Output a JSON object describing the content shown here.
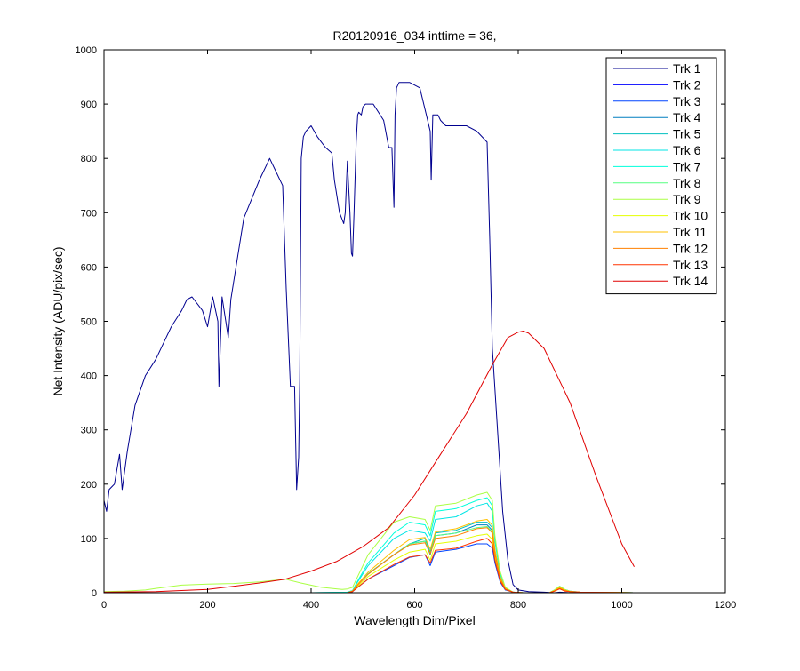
{
  "chart_data": {
    "type": "line",
    "title": "R20120916_034 inttime = 36,",
    "xlabel": "Wavelength Dim/Pixel",
    "ylabel": "Net Intensity (ADU/pix/sec)",
    "xlim": [
      0,
      1200
    ],
    "ylim": [
      0,
      1000
    ],
    "xticks": [
      0,
      200,
      400,
      600,
      800,
      1000,
      1200
    ],
    "yticks": [
      0,
      100,
      200,
      300,
      400,
      500,
      600,
      700,
      800,
      900,
      1000
    ],
    "legend_position": "top-right",
    "series": [
      {
        "name": "Trk 1",
        "color": "#00008f",
        "x": [
          0,
          5,
          10,
          20,
          30,
          35,
          45,
          60,
          80,
          100,
          120,
          130,
          140,
          150,
          160,
          170,
          190,
          200,
          210,
          220,
          222,
          228,
          240,
          245,
          255,
          270,
          300,
          320,
          330,
          345,
          352,
          360,
          368,
          372,
          376,
          378,
          381,
          385,
          390,
          400,
          412,
          420,
          428,
          440,
          445,
          455,
          463,
          466,
          470,
          475,
          478,
          480,
          483,
          487,
          490,
          492,
          497,
          500,
          505,
          520,
          540,
          550,
          556,
          560,
          562,
          565,
          570,
          590,
          610,
          620,
          630,
          632,
          635,
          640,
          645,
          650,
          660,
          700,
          720,
          740,
          745,
          750,
          760,
          770,
          780,
          790,
          800,
          820,
          850,
          870,
          880,
          900,
          960,
          1000,
          1024
        ],
        "y": [
          170,
          150,
          190,
          200,
          255,
          190,
          260,
          345,
          400,
          430,
          470,
          490,
          505,
          520,
          540,
          545,
          520,
          490,
          545,
          500,
          380,
          545,
          470,
          540,
          600,
          690,
          760,
          800,
          780,
          750,
          560,
          380,
          380,
          190,
          250,
          390,
          800,
          840,
          850,
          860,
          840,
          830,
          820,
          810,
          760,
          700,
          680,
          700,
          795,
          700,
          625,
          620,
          700,
          830,
          880,
          885,
          880,
          895,
          900,
          900,
          870,
          820,
          820,
          710,
          880,
          930,
          940,
          940,
          930,
          890,
          850,
          760,
          880,
          880,
          880,
          870,
          860,
          860,
          850,
          830,
          650,
          450,
          300,
          150,
          60,
          15,
          5,
          2,
          1,
          0,
          1,
          0,
          0,
          0,
          0
        ]
      },
      {
        "name": "Trk 2",
        "color": "#0000ff",
        "x": [
          0,
          480,
          500,
          600,
          620,
          630,
          640,
          700,
          740,
          750,
          760,
          770,
          780,
          800,
          850,
          1024
        ],
        "y": [
          0,
          0,
          0,
          0,
          0,
          0,
          0,
          0,
          0,
          0,
          0,
          0,
          0,
          0,
          0,
          0
        ]
      },
      {
        "name": "Trk 3",
        "color": "#0044ff",
        "x": [
          0,
          400,
          470,
          480,
          490,
          510,
          560,
          590,
          620,
          630,
          640,
          680,
          720,
          740,
          750,
          755,
          765,
          775,
          790,
          810,
          860,
          870,
          880,
          890,
          900,
          920,
          1024
        ],
        "y": [
          0,
          0,
          0,
          2,
          10,
          25,
          50,
          65,
          70,
          50,
          75,
          80,
          90,
          90,
          82,
          55,
          20,
          5,
          1,
          0,
          0,
          3,
          8,
          4,
          2,
          1,
          0
        ]
      },
      {
        "name": "Trk 4",
        "color": "#007fbf",
        "x": [
          0,
          400,
          470,
          480,
          490,
          510,
          560,
          590,
          620,
          630,
          640,
          680,
          720,
          740,
          750,
          755,
          765,
          775,
          790,
          810,
          860,
          870,
          880,
          890,
          900,
          920,
          1024
        ],
        "y": [
          0,
          0,
          0,
          3,
          15,
          35,
          70,
          90,
          95,
          70,
          105,
          110,
          125,
          125,
          115,
          75,
          28,
          7,
          1,
          0,
          0,
          4,
          10,
          5,
          2,
          1,
          0
        ]
      },
      {
        "name": "Trk 5",
        "color": "#00bfbf",
        "x": [
          0,
          400,
          470,
          480,
          490,
          510,
          560,
          590,
          620,
          630,
          640,
          680,
          720,
          740,
          750,
          755,
          765,
          775,
          790,
          810,
          860,
          870,
          880,
          890,
          900,
          920,
          1024
        ],
        "y": [
          0,
          0,
          0,
          3,
          15,
          35,
          70,
          90,
          100,
          75,
          110,
          115,
          130,
          130,
          120,
          78,
          30,
          8,
          1,
          0,
          0,
          4,
          10,
          5,
          2,
          1,
          0
        ]
      },
      {
        "name": "Trk 6",
        "color": "#00e5e5",
        "x": [
          0,
          400,
          470,
          480,
          490,
          510,
          560,
          590,
          620,
          630,
          640,
          680,
          720,
          740,
          750,
          755,
          765,
          775,
          790,
          810,
          860,
          870,
          880,
          890,
          900,
          920,
          1024
        ],
        "y": [
          0,
          0,
          1,
          4,
          20,
          50,
          100,
          115,
          110,
          95,
          135,
          140,
          160,
          165,
          150,
          95,
          35,
          9,
          1,
          0,
          0,
          5,
          12,
          6,
          3,
          1,
          0
        ]
      },
      {
        "name": "Trk 7",
        "color": "#00ffdc",
        "x": [
          0,
          400,
          470,
          480,
          490,
          510,
          560,
          590,
          620,
          630,
          640,
          680,
          720,
          740,
          750,
          755,
          765,
          775,
          790,
          810,
          860,
          870,
          880,
          890,
          900,
          920,
          1024
        ],
        "y": [
          0,
          0,
          1,
          4,
          22,
          55,
          110,
          130,
          125,
          105,
          150,
          155,
          170,
          175,
          160,
          100,
          38,
          10,
          1,
          0,
          0,
          5,
          12,
          6,
          3,
          1,
          0
        ]
      },
      {
        "name": "Trk 8",
        "color": "#55ff80",
        "x": [
          0,
          400,
          470,
          480,
          490,
          510,
          560,
          590,
          620,
          630,
          640,
          680,
          720,
          740,
          750,
          755,
          765,
          775,
          790,
          810,
          860,
          870,
          880,
          890,
          900,
          920,
          1024
        ],
        "y": [
          0,
          0,
          0,
          3,
          15,
          35,
          70,
          90,
          95,
          72,
          105,
          110,
          120,
          122,
          112,
          72,
          27,
          7,
          1,
          0,
          0,
          4,
          9,
          5,
          2,
          1,
          0
        ]
      },
      {
        "name": "Trk 9",
        "color": "#aaff44",
        "x": [
          0,
          40,
          80,
          100,
          150,
          200,
          250,
          300,
          350,
          380,
          420,
          460,
          470,
          480,
          490,
          510,
          560,
          590,
          620,
          630,
          640,
          680,
          720,
          740,
          750,
          755,
          765,
          775,
          790,
          810,
          860,
          870,
          880,
          890,
          900,
          920,
          1024
        ],
        "y": [
          2,
          3,
          5,
          8,
          14,
          16,
          17,
          20,
          25,
          18,
          10,
          6,
          7,
          10,
          30,
          70,
          130,
          140,
          135,
          115,
          160,
          165,
          180,
          185,
          170,
          105,
          40,
          10,
          1,
          0,
          0,
          5,
          12,
          6,
          3,
          1,
          0
        ]
      },
      {
        "name": "Trk 10",
        "color": "#e5ff00",
        "x": [
          0,
          400,
          470,
          480,
          490,
          510,
          560,
          590,
          620,
          630,
          640,
          680,
          720,
          740,
          750,
          755,
          765,
          775,
          790,
          810,
          860,
          870,
          880,
          890,
          900,
          920,
          1024
        ],
        "y": [
          0,
          0,
          0,
          3,
          12,
          30,
          60,
          75,
          80,
          60,
          90,
          95,
          105,
          108,
          98,
          64,
          24,
          6,
          1,
          0,
          0,
          3,
          8,
          4,
          2,
          1,
          0
        ]
      },
      {
        "name": "Trk 11",
        "color": "#ffc000",
        "x": [
          0,
          400,
          470,
          480,
          490,
          510,
          560,
          590,
          620,
          630,
          640,
          680,
          720,
          740,
          750,
          755,
          765,
          775,
          790,
          810,
          860,
          870,
          880,
          890,
          900,
          920,
          1024
        ],
        "y": [
          0,
          0,
          0,
          3,
          16,
          38,
          78,
          98,
          102,
          80,
          112,
          118,
          132,
          135,
          124,
          80,
          30,
          8,
          1,
          0,
          0,
          4,
          10,
          5,
          2,
          1,
          0
        ]
      },
      {
        "name": "Trk 12",
        "color": "#ff8000",
        "x": [
          0,
          400,
          470,
          480,
          490,
          510,
          560,
          590,
          620,
          630,
          640,
          680,
          720,
          740,
          750,
          755,
          765,
          775,
          790,
          810,
          860,
          870,
          880,
          890,
          900,
          920,
          1024
        ],
        "y": [
          0,
          0,
          0,
          3,
          14,
          34,
          70,
          88,
          92,
          72,
          100,
          105,
          118,
          120,
          110,
          72,
          27,
          7,
          1,
          0,
          0,
          3,
          8,
          4,
          2,
          1,
          0
        ]
      },
      {
        "name": "Trk 13",
        "color": "#ff3300",
        "x": [
          0,
          400,
          470,
          480,
          490,
          510,
          560,
          590,
          620,
          630,
          640,
          680,
          720,
          740,
          750,
          755,
          765,
          775,
          790,
          810,
          860,
          870,
          880,
          890,
          900,
          920,
          1024
        ],
        "y": [
          0,
          0,
          0,
          2,
          10,
          25,
          52,
          66,
          70,
          55,
          78,
          82,
          95,
          100,
          90,
          60,
          22,
          6,
          1,
          0,
          0,
          3,
          7,
          3,
          2,
          1,
          0
        ]
      },
      {
        "name": "Trk 14",
        "color": "#e00000",
        "x": [
          0,
          100,
          200,
          250,
          300,
          350,
          400,
          450,
          500,
          550,
          600,
          650,
          700,
          750,
          780,
          800,
          810,
          820,
          850,
          900,
          950,
          1000,
          1024
        ],
        "y": [
          1,
          2,
          6,
          12,
          18,
          25,
          40,
          58,
          85,
          120,
          180,
          255,
          330,
          420,
          470,
          480,
          482,
          478,
          450,
          350,
          215,
          90,
          48
        ]
      }
    ]
  }
}
